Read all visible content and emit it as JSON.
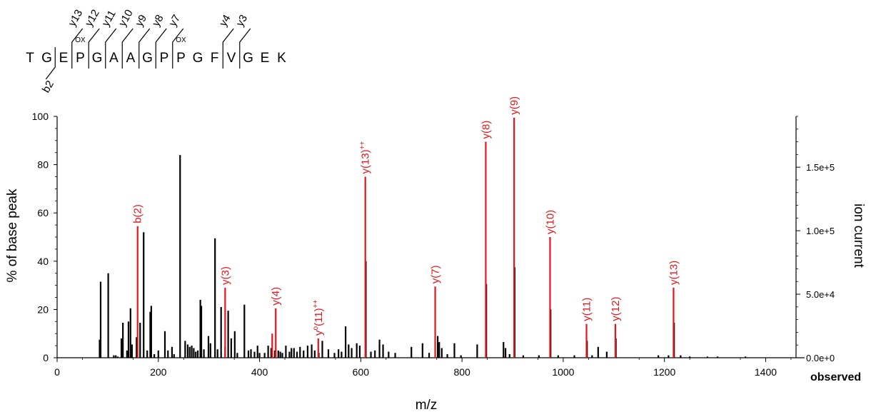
{
  "sequence": {
    "residues": [
      "T",
      "G",
      "E",
      "P",
      "G",
      "A",
      "A",
      "G",
      "P",
      "P",
      "G",
      "F",
      "V",
      "G",
      "E",
      "K"
    ],
    "mods": [
      {
        "after": 2,
        "label": "OX"
      },
      {
        "after": 8,
        "label": "OX"
      }
    ],
    "y_labels": [
      {
        "after": 2,
        "label": "y13"
      },
      {
        "after": 3,
        "label": "y12"
      },
      {
        "after": 4,
        "label": "y11"
      },
      {
        "after": 5,
        "label": "y10"
      },
      {
        "after": 6,
        "label": "y9"
      },
      {
        "after": 7,
        "label": "y8"
      },
      {
        "after": 8,
        "label": "y7"
      },
      {
        "after": 11,
        "label": "y4"
      },
      {
        "after": 12,
        "label": "y3"
      }
    ],
    "b_labels": [
      {
        "after": 1,
        "label": "b2"
      }
    ]
  },
  "chart_data": {
    "type": "bar",
    "xlabel": "m/z",
    "ylabel": "% of base peak",
    "y2label": "ion current",
    "observed_label": "observed",
    "xlim": [
      0,
      1460
    ],
    "ylim": [
      0,
      100
    ],
    "xticks": [
      "0",
      "200",
      "400",
      "600",
      "800",
      "1000",
      "1200",
      "1400"
    ],
    "yticks": [
      "0",
      "20",
      "40",
      "60",
      "80",
      "100"
    ],
    "y2ticks": [
      "0.0e+0",
      "5.0e+4",
      "1.0e+5",
      "1.5e+5"
    ],
    "colors": {
      "matched": "#e8141b",
      "unmatched": "#000000"
    },
    "peaks": [
      [
        84,
        7.5
      ],
      [
        86,
        31.5
      ],
      [
        101,
        35
      ],
      [
        112,
        1
      ],
      [
        116,
        1
      ],
      [
        120,
        0.5
      ],
      [
        127,
        8
      ],
      [
        129,
        7.5
      ],
      [
        130,
        14.5
      ],
      [
        138,
        3
      ],
      [
        141,
        15
      ],
      [
        145,
        20.5
      ],
      [
        148,
        5.5
      ],
      [
        157,
        8.5
      ],
      [
        164,
        14.5
      ],
      [
        171,
        52
      ],
      [
        178,
        3
      ],
      [
        184,
        19
      ],
      [
        186,
        21.5
      ],
      [
        192,
        1.5
      ],
      [
        200,
        3
      ],
      [
        213,
        11
      ],
      [
        219,
        3
      ],
      [
        227,
        4.5
      ],
      [
        231,
        1.5
      ],
      [
        243,
        84
      ],
      [
        253,
        7
      ],
      [
        258,
        5.5
      ],
      [
        262,
        4.5
      ],
      [
        266,
        5
      ],
      [
        270,
        4
      ],
      [
        274,
        2.5
      ],
      [
        278,
        3
      ],
      [
        283,
        24
      ],
      [
        285,
        21.5
      ],
      [
        290,
        3.5
      ],
      [
        299,
        9
      ],
      [
        303,
        6
      ],
      [
        312,
        49.5
      ],
      [
        317,
        3.5
      ],
      [
        324,
        21
      ],
      [
        332,
        4.5
      ],
      [
        338,
        19.5
      ],
      [
        344,
        8
      ],
      [
        351,
        11
      ],
      [
        356,
        2
      ],
      [
        370,
        22
      ],
      [
        378,
        3
      ],
      [
        383,
        3.5
      ],
      [
        390,
        2.5
      ],
      [
        396,
        5
      ],
      [
        400,
        2
      ],
      [
        410,
        2
      ],
      [
        417,
        5
      ],
      [
        423,
        4
      ],
      [
        430,
        3
      ],
      [
        437,
        3
      ],
      [
        441,
        2.5
      ],
      [
        445,
        2
      ],
      [
        452,
        5
      ],
      [
        459,
        2.5
      ],
      [
        463,
        4
      ],
      [
        468,
        4
      ],
      [
        474,
        2.5
      ],
      [
        480,
        4.5
      ],
      [
        487,
        3
      ],
      [
        495,
        5
      ],
      [
        503,
        5.5
      ],
      [
        509,
        3
      ],
      [
        517,
        2
      ],
      [
        524,
        7
      ],
      [
        536,
        3.5
      ],
      [
        548,
        2
      ],
      [
        556,
        3.5
      ],
      [
        562,
        2.5
      ],
      [
        570,
        13
      ],
      [
        576,
        5.5
      ],
      [
        582,
        4
      ],
      [
        592,
        6
      ],
      [
        598,
        5
      ],
      [
        610,
        40
      ],
      [
        620,
        2.5
      ],
      [
        628,
        3
      ],
      [
        637,
        7.5
      ],
      [
        644,
        5.5
      ],
      [
        655,
        2.5
      ],
      [
        668,
        2
      ],
      [
        700,
        4.5
      ],
      [
        722,
        6
      ],
      [
        735,
        2
      ],
      [
        752,
        9
      ],
      [
        755,
        6.5
      ],
      [
        760,
        4
      ],
      [
        771,
        1.5
      ],
      [
        785,
        6
      ],
      [
        798,
        1
      ],
      [
        830,
        5.5
      ],
      [
        848,
        30.5
      ],
      [
        882,
        6.5
      ],
      [
        886,
        4
      ],
      [
        894,
        1.5
      ],
      [
        904,
        37.5
      ],
      [
        921,
        1
      ],
      [
        952,
        1
      ],
      [
        975,
        20
      ],
      [
        990,
        1
      ],
      [
        1022,
        1
      ],
      [
        1047,
        7
      ],
      [
        1057,
        1
      ],
      [
        1069,
        4.5
      ],
      [
        1086,
        2.5
      ],
      [
        1104,
        8
      ],
      [
        1188,
        1
      ],
      [
        1208,
        1
      ],
      [
        1219,
        14.5
      ],
      [
        1232,
        1
      ],
      [
        1250,
        0.5
      ],
      [
        1285,
        0.5
      ],
      [
        1305,
        0.5
      ],
      [
        1360,
        0.5
      ]
    ],
    "matched": [
      {
        "label": "b(2)",
        "x": 159,
        "y": 54.5
      },
      {
        "label": "y(3)",
        "x": 332,
        "y": 29
      },
      {
        "label": "y(4)",
        "x": 432,
        "y": 20.5
      },
      {
        "label": "yo(11)++",
        "x": 516,
        "y": 8
      },
      {
        "label": "y(13)++",
        "x": 609,
        "y": 75
      },
      {
        "label": "y(7)",
        "x": 747,
        "y": 29.5
      },
      {
        "label": "y(8)",
        "x": 847,
        "y": 89.5
      },
      {
        "label": "y(9)",
        "x": 903,
        "y": 99.5
      },
      {
        "label": "y(10)",
        "x": 974,
        "y": 50
      },
      {
        "label": "y(11)",
        "x": 1046,
        "y": 14
      },
      {
        "label": "y(12)",
        "x": 1103,
        "y": 14
      },
      {
        "label": "y(13)",
        "x": 1218,
        "y": 29
      }
    ],
    "extra_red": [
      [
        425,
        10
      ]
    ]
  }
}
